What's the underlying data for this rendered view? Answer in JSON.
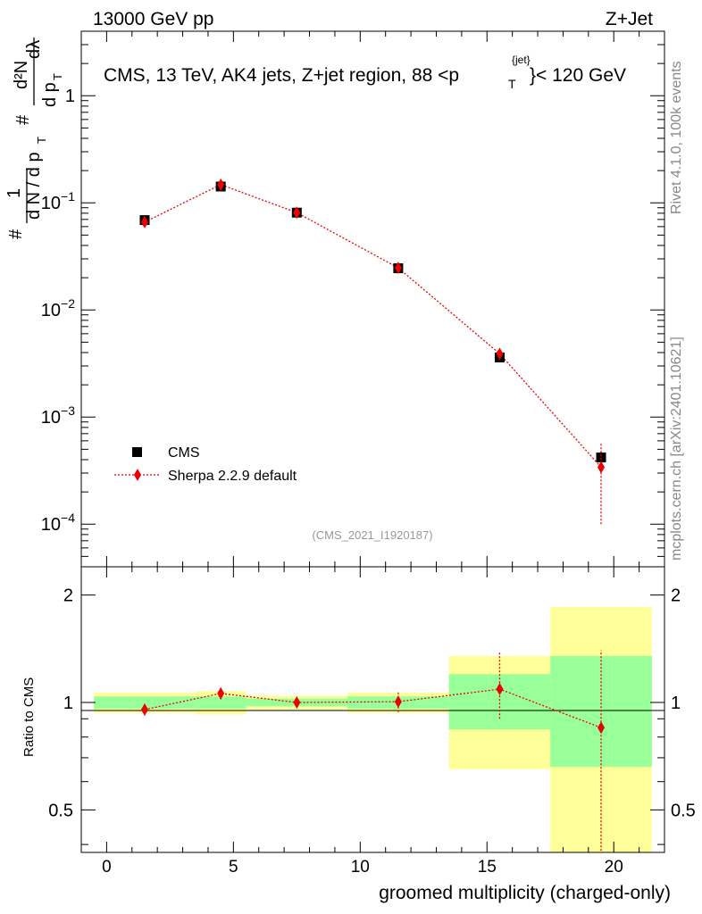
{
  "header": {
    "energy_label": "13000 GeV pp",
    "process_label": "Z+Jet",
    "plot_title": "CMS, 13 TeV, AK4 jets, Z+jet region, 88 <p",
    "plot_title_sub": "T",
    "plot_title_sup": "{jet}",
    "plot_title_end": "}< 120 GeV",
    "analysis_id": "(CMS_2021_I1920187)",
    "side_rivet": "Rivet 4.1.0,  100k events",
    "side_site": "mcplots.cern.ch [arXiv:2401.10621]"
  },
  "colors": {
    "data": "#000000",
    "mc": "#ee0000",
    "band_inner": "#99ff99",
    "band_outer": "#ffff99"
  },
  "chart_data": [
    {
      "type": "scatter",
      "panel": "main",
      "yscale": "log",
      "ylabel_parts": [
        "#",
        "1",
        "d N / d p",
        "T",
        "#",
        "d p",
        "T",
        "d²N",
        "dλ"
      ],
      "xlim": [
        -1,
        22
      ],
      "ylim": [
        4e-05,
        4
      ],
      "x_ticks": [
        "0",
        "5",
        "10",
        "15",
        "20"
      ],
      "y_tick_labels": [
        {
          "value": 1,
          "base": "1",
          "exp": ""
        },
        {
          "value": 0.1,
          "base": "10",
          "exp": "−1"
        },
        {
          "value": 0.01,
          "base": "10",
          "exp": "−2"
        },
        {
          "value": 0.001,
          "base": "10",
          "exp": "−3"
        },
        {
          "value": 0.0001,
          "base": "10",
          "exp": "−4"
        }
      ],
      "legend": [
        {
          "name": "CMS",
          "marker": "square"
        },
        {
          "name": "Sherpa 2.2.9 default",
          "marker": "diamond"
        }
      ],
      "series": [
        {
          "name": "CMS",
          "x": [
            1.5,
            4.5,
            7.5,
            11.5,
            15.5,
            19.5
          ],
          "y": [
            0.069,
            0.142,
            0.081,
            0.0245,
            0.0036,
            0.00042
          ],
          "yerr_lo": [
            0.003,
            0.005,
            0.003,
            0.0008,
            0.0003,
            6e-05
          ],
          "yerr_hi": [
            0.003,
            0.005,
            0.003,
            0.0008,
            0.0003,
            6e-05
          ]
        },
        {
          "name": "Sherpa 2.2.9 default",
          "x": [
            1.5,
            4.5,
            7.5,
            11.5,
            15.5,
            19.5
          ],
          "y": [
            0.066,
            0.148,
            0.081,
            0.0247,
            0.0039,
            0.00034
          ],
          "yerr_lo": [
            0.003,
            0.007,
            0.003,
            0.0008,
            0.0004,
            0.00024
          ],
          "yerr_hi": [
            0.003,
            0.007,
            0.003,
            0.0008,
            0.0004,
            0.00024
          ]
        }
      ]
    },
    {
      "type": "scatter",
      "panel": "ratio",
      "yscale": "log",
      "ylabel": "Ratio to CMS",
      "xlabel": "groomed multiplicity (charged-only)",
      "xlim": [
        -1,
        22
      ],
      "ylim": [
        0.38,
        2.4
      ],
      "x_ticks": [
        "0",
        "5",
        "10",
        "15",
        "20"
      ],
      "y_ticks": [
        "0.5",
        "1",
        "2"
      ],
      "bins": [
        {
          "x_lo": -0.5,
          "x_hi": 3.5,
          "inner": [
            0.96,
            1.04
          ],
          "outer": [
            0.935,
            1.065
          ]
        },
        {
          "x_lo": 3.5,
          "x_hi": 5.5,
          "inner": [
            0.96,
            1.04
          ],
          "outer": [
            0.925,
            1.075
          ]
        },
        {
          "x_lo": 5.5,
          "x_hi": 9.5,
          "inner": [
            0.975,
            1.025
          ],
          "outer": [
            0.955,
            1.045
          ]
        },
        {
          "x_lo": 9.5,
          "x_hi": 13.5,
          "inner": [
            0.96,
            1.04
          ],
          "outer": [
            0.935,
            1.065
          ]
        },
        {
          "x_lo": 13.5,
          "x_hi": 17.5,
          "inner": [
            0.84,
            1.2
          ],
          "outer": [
            0.65,
            1.35
          ]
        },
        {
          "x_lo": 17.5,
          "x_hi": 21.5,
          "inner": [
            0.66,
            1.35
          ],
          "outer": [
            0.355,
            1.85
          ]
        }
      ],
      "series": [
        {
          "name": "Sherpa 2.2.9 default",
          "x": [
            1.5,
            4.5,
            7.5,
            11.5,
            15.5,
            19.5
          ],
          "y": [
            0.955,
            1.06,
            1.0,
            1.005,
            1.09,
            0.85
          ],
          "yerr_lo": [
            0.035,
            0.04,
            0.03,
            0.065,
            0.19,
            0.5
          ],
          "yerr_hi": [
            0.035,
            0.04,
            0.03,
            0.065,
            0.3,
            0.55
          ]
        }
      ]
    }
  ]
}
